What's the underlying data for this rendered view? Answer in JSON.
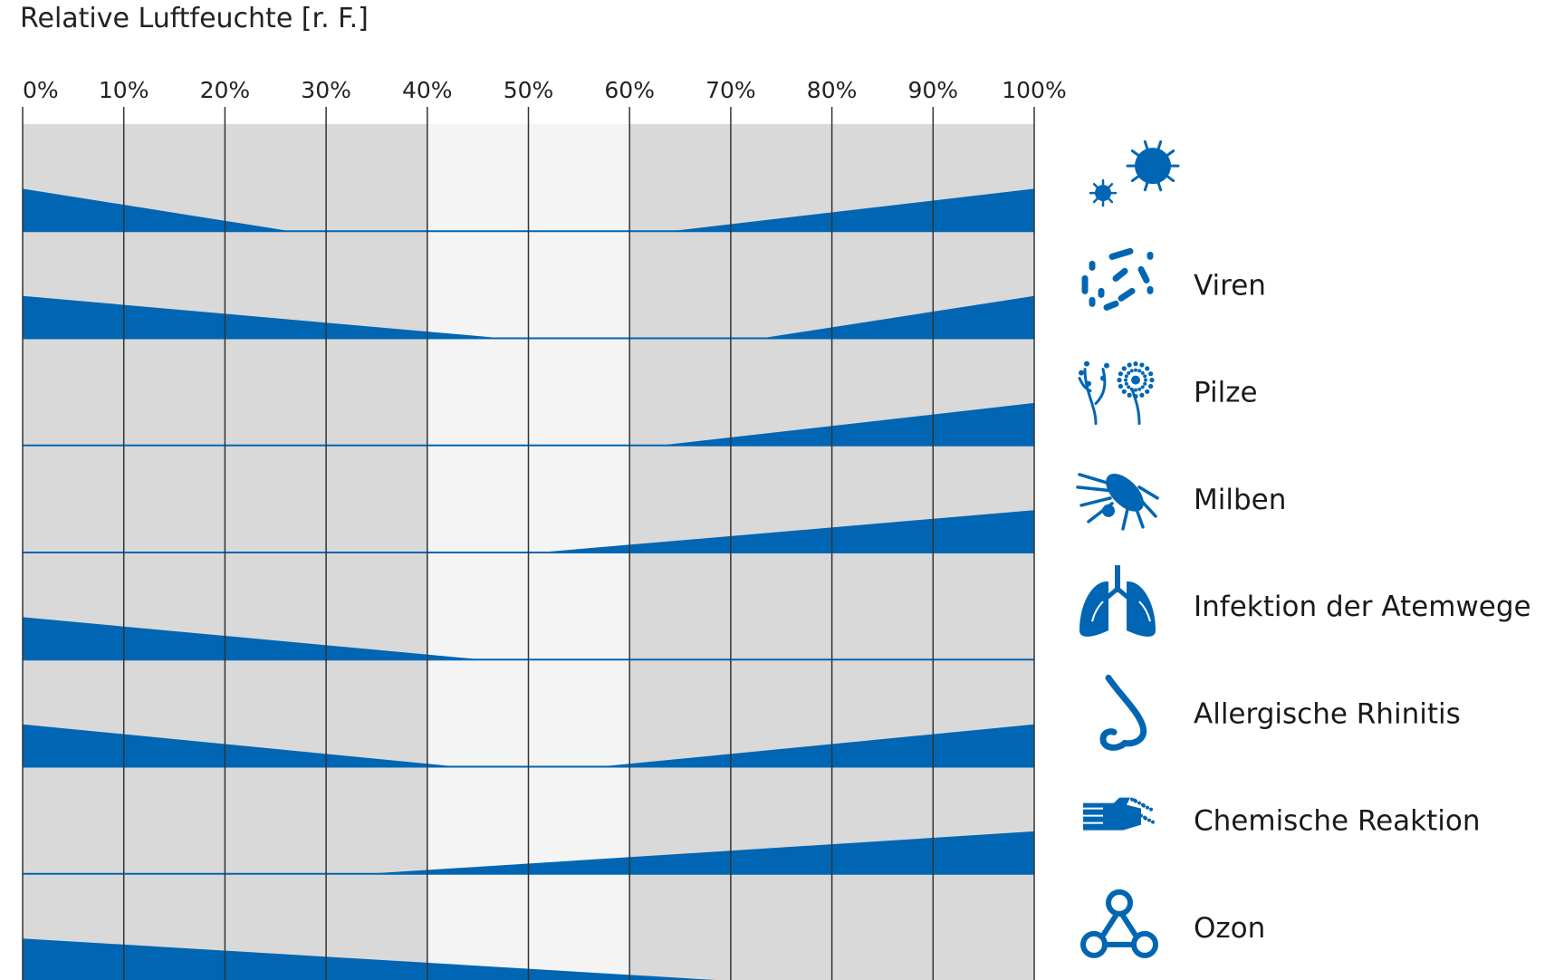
{
  "chart_data": {
    "type": "area",
    "title": "Relative Luftfeuchte [r. F.]",
    "xlabel": "",
    "ylabel": "",
    "xlim": [
      0,
      100
    ],
    "x_ticks": [
      "0%",
      "10%",
      "20%",
      "30%",
      "40%",
      "50%",
      "60%",
      "70%",
      "80%",
      "90%",
      "100%"
    ],
    "optimal_zone": [
      40,
      60
    ],
    "grid": true,
    "colors": {
      "fill": "#0066b3",
      "background": "#d9d9d9",
      "optimal": "#f4f4f4",
      "grid": "#333333",
      "icon": "#0066b3"
    },
    "value_scale": [
      0,
      1
    ],
    "series": [
      {
        "name": "",
        "icon": "bacteria-icon",
        "points": [
          [
            0,
            0.55
          ],
          [
            26.5,
            0
          ],
          [
            64,
            0
          ],
          [
            100,
            0.55
          ]
        ]
      },
      {
        "name": "Viren",
        "icon": "virus-particles-icon",
        "points": [
          [
            0,
            0.55
          ],
          [
            47.5,
            0
          ],
          [
            73,
            0
          ],
          [
            100,
            0.55
          ]
        ]
      },
      {
        "name": "Pilze",
        "icon": "fungi-icon",
        "points": [
          [
            0,
            0
          ],
          [
            63,
            0
          ],
          [
            100,
            0.55
          ]
        ]
      },
      {
        "name": "Milben",
        "icon": "mite-icon",
        "points": [
          [
            0,
            0
          ],
          [
            51,
            0
          ],
          [
            100,
            0.55
          ]
        ]
      },
      {
        "name": "Infektion der Atemwege",
        "icon": "lungs-icon",
        "points": [
          [
            0,
            0.55
          ],
          [
            45.5,
            0
          ],
          [
            100,
            0
          ]
        ]
      },
      {
        "name": "Allergische Rhinitis",
        "icon": "nose-icon",
        "points": [
          [
            0,
            0.55
          ],
          [
            43,
            0
          ],
          [
            57,
            0
          ],
          [
            100,
            0.55
          ]
        ]
      },
      {
        "name": "Chemische Reaktion",
        "icon": "hand-chemical-icon",
        "points": [
          [
            0,
            0
          ],
          [
            34,
            0
          ],
          [
            100,
            0.55
          ]
        ]
      },
      {
        "name": "Ozon",
        "icon": "ozone-molecule-icon",
        "points": [
          [
            0,
            0.55
          ],
          [
            70,
            0
          ],
          [
            100,
            0
          ]
        ]
      }
    ]
  }
}
